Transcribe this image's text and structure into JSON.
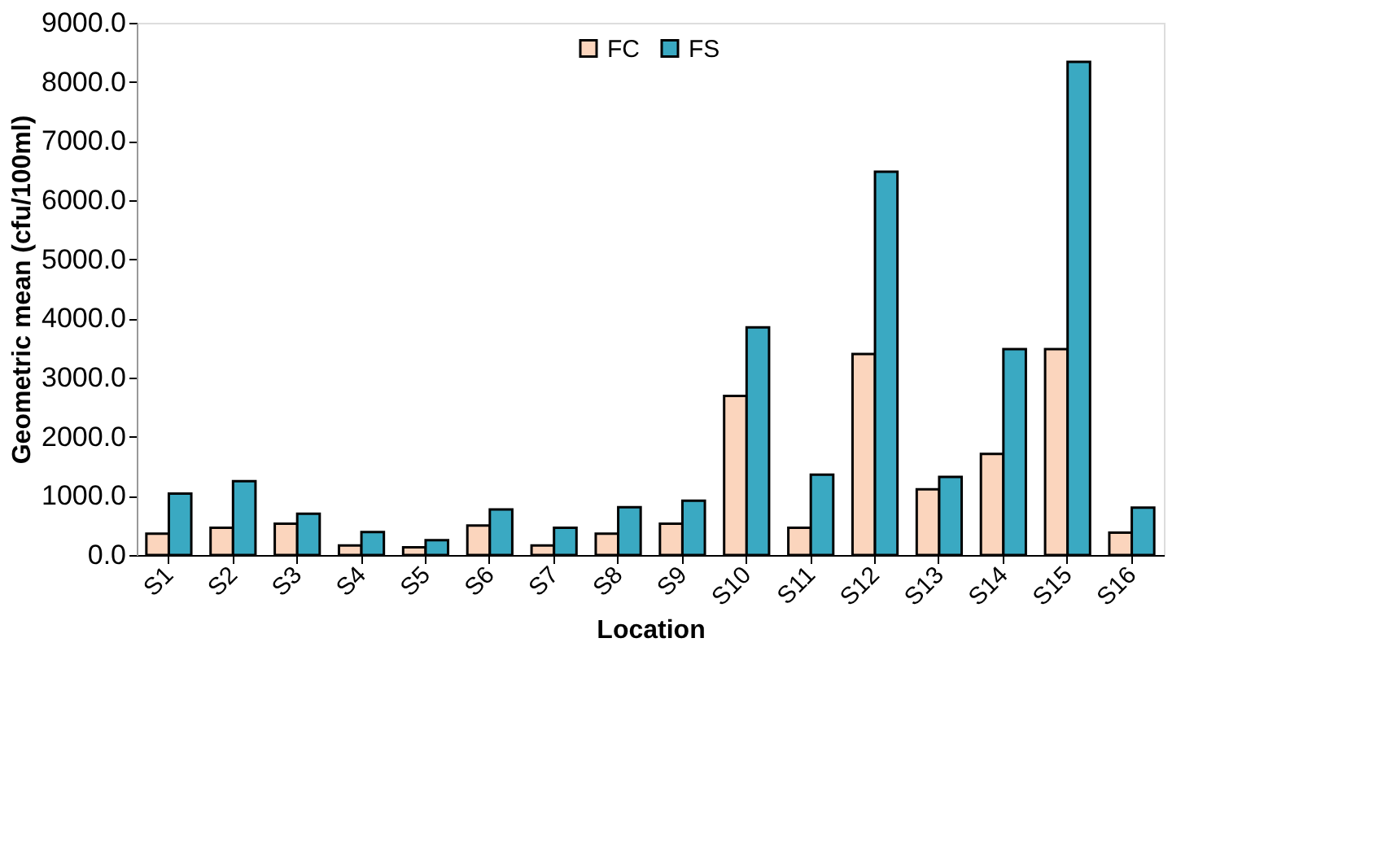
{
  "chart_data": {
    "type": "bar",
    "xlabel": "Location",
    "ylabel": "Geometric mean (cfu/100ml)",
    "categories": [
      "S1",
      "S2",
      "S3",
      "S4",
      "S5",
      "S6",
      "S7",
      "S8",
      "S9",
      "S10",
      "S11",
      "S12",
      "S13",
      "S14",
      "S15",
      "S16"
    ],
    "series": [
      {
        "name": "FC",
        "color": "#fbd5bd",
        "values": [
          360,
          460,
          530,
          160,
          130,
          500,
          160,
          360,
          530,
          2690,
          460,
          3400,
          1110,
          1710,
          3480,
          380
        ]
      },
      {
        "name": "FS",
        "color": "#3aa9c2",
        "values": [
          1040,
          1250,
          700,
          390,
          250,
          770,
          460,
          810,
          920,
          3850,
          1360,
          6480,
          1320,
          3480,
          8340,
          800
        ]
      }
    ],
    "ylim": [
      0,
      9000
    ],
    "yticks": [
      {
        "value": 0,
        "label": "0.0"
      },
      {
        "value": 1000,
        "label": "1000.0"
      },
      {
        "value": 2000,
        "label": "2000.0"
      },
      {
        "value": 3000,
        "label": "3000.0"
      },
      {
        "value": 4000,
        "label": "4000.0"
      },
      {
        "value": 5000,
        "label": "5000.0"
      },
      {
        "value": 6000,
        "label": "6000.0"
      },
      {
        "value": 7000,
        "label": "7000.0"
      },
      {
        "value": 8000,
        "label": "8000.0"
      },
      {
        "value": 9000,
        "label": "9000.0"
      }
    ],
    "grid": false,
    "legend": "top"
  }
}
